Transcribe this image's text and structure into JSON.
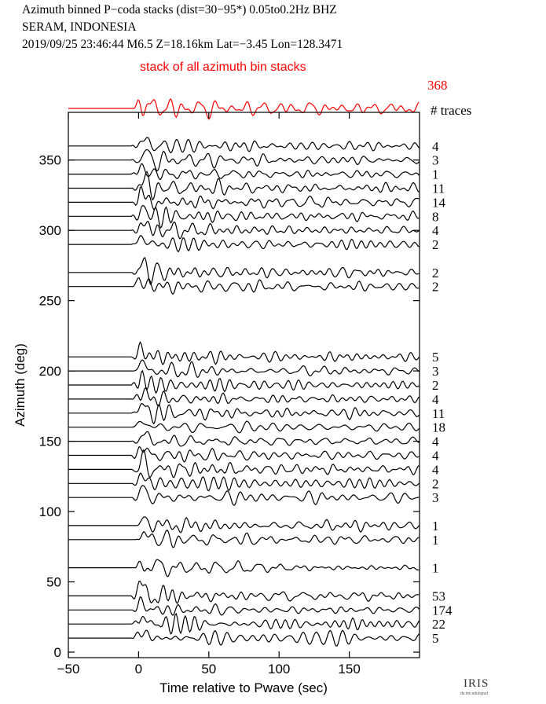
{
  "header": {
    "line1": "Azimuth binned P−coda stacks (dist=30−95*)  0.05to0.2Hz  BHZ",
    "line2": "SERAM, INDONESIA",
    "line3": "2019/09/25  23:46:44  M6.5  Z=18.16km Lat=−3.45 Lon=128.3471"
  },
  "logo": {
    "word": "IRIS",
    "url": "ds.iris.edu/spud"
  },
  "chart_data": {
    "type": "line",
    "title": "",
    "xlabel": "Time relative to Pwave (sec)",
    "ylabel": "Azimuth (deg)",
    "xlim": [
      -50,
      200
    ],
    "ylim": [
      0,
      380
    ],
    "x_ticks": [
      -50,
      0,
      50,
      100,
      150
    ],
    "y_ticks": [
      0,
      50,
      100,
      150,
      200,
      250,
      300,
      350
    ],
    "x_tick_labels": [
      "−50",
      "0",
      "50",
      "100",
      "150"
    ],
    "y_tick_labels": [
      "0",
      "50",
      "100",
      "150",
      "200",
      "250",
      "300",
      "350"
    ],
    "stack": {
      "label": "stack of all azimuth bin stacks",
      "trace_count": "368",
      "color": "#ff0000"
    },
    "counts_header": "# traces",
    "series": [
      {
        "azimuth": 360,
        "traces": "4",
        "onset": -5
      },
      {
        "azimuth": 350,
        "traces": "3",
        "onset": -5
      },
      {
        "azimuth": 340,
        "traces": "1",
        "onset": -5
      },
      {
        "azimuth": 330,
        "traces": "11",
        "onset": -5
      },
      {
        "azimuth": 320,
        "traces": "14",
        "onset": -5
      },
      {
        "azimuth": 310,
        "traces": "8",
        "onset": -5
      },
      {
        "azimuth": 300,
        "traces": "4",
        "onset": -5
      },
      {
        "azimuth": 290,
        "traces": "2",
        "onset": -5
      },
      {
        "azimuth": 270,
        "traces": "2",
        "onset": -5
      },
      {
        "azimuth": 260,
        "traces": "2",
        "onset": -5
      },
      {
        "azimuth": 210,
        "traces": "5",
        "onset": -5
      },
      {
        "azimuth": 200,
        "traces": "3",
        "onset": -5
      },
      {
        "azimuth": 190,
        "traces": "2",
        "onset": -5
      },
      {
        "azimuth": 180,
        "traces": "4",
        "onset": -5
      },
      {
        "azimuth": 170,
        "traces": "11",
        "onset": -5
      },
      {
        "azimuth": 160,
        "traces": "18",
        "onset": -5
      },
      {
        "azimuth": 150,
        "traces": "4",
        "onset": -5
      },
      {
        "azimuth": 140,
        "traces": "4",
        "onset": -5
      },
      {
        "azimuth": 130,
        "traces": "4",
        "onset": -5
      },
      {
        "azimuth": 120,
        "traces": "2",
        "onset": -5
      },
      {
        "azimuth": 110,
        "traces": "3",
        "onset": -5
      },
      {
        "azimuth": 90,
        "traces": "1",
        "onset": -2
      },
      {
        "azimuth": 80,
        "traces": "1",
        "onset": -2
      },
      {
        "azimuth": 60,
        "traces": "1",
        "onset": -2
      },
      {
        "azimuth": 40,
        "traces": "53",
        "onset": -5
      },
      {
        "azimuth": 30,
        "traces": "174",
        "onset": -5
      },
      {
        "azimuth": 20,
        "traces": "22",
        "onset": -5
      },
      {
        "azimuth": 10,
        "traces": "5",
        "onset": -5
      }
    ],
    "grid": false,
    "legend": "none"
  }
}
